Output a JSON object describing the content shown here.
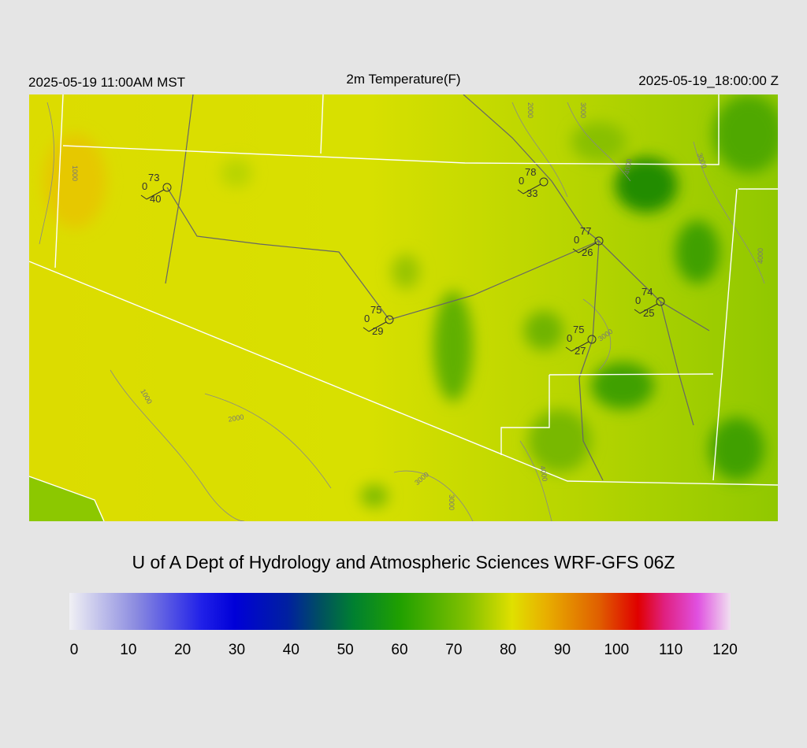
{
  "header": {
    "local_time": "2025-05-19 11:00AM MST",
    "title": "2m Temperature(F)",
    "valid_time": "2025-05-19_18:00:00 Z"
  },
  "stations": [
    {
      "temperature": 73,
      "left": 0,
      "bottom": 40
    },
    {
      "temperature": 78,
      "left": 0,
      "bottom": 33
    },
    {
      "temperature": 77,
      "left": 0,
      "bottom": 26
    },
    {
      "temperature": 74,
      "left": 0,
      "bottom": 25
    },
    {
      "temperature": 75,
      "left": 0,
      "bottom": 29
    },
    {
      "temperature": 75,
      "left": 0,
      "bottom": 27
    }
  ],
  "contour_labels": [
    "1000",
    "2000",
    "3000",
    "4000",
    "3000",
    "4000",
    "3000",
    "1000",
    "2000",
    "3000",
    "3000",
    "4000"
  ],
  "footer": "U of A Dept of Hydrology and Atmospheric Sciences WRF-GFS 06Z",
  "colorbar": {
    "ticks": [
      0,
      10,
      20,
      30,
      40,
      50,
      60,
      70,
      80,
      90,
      100,
      110,
      120
    ]
  }
}
